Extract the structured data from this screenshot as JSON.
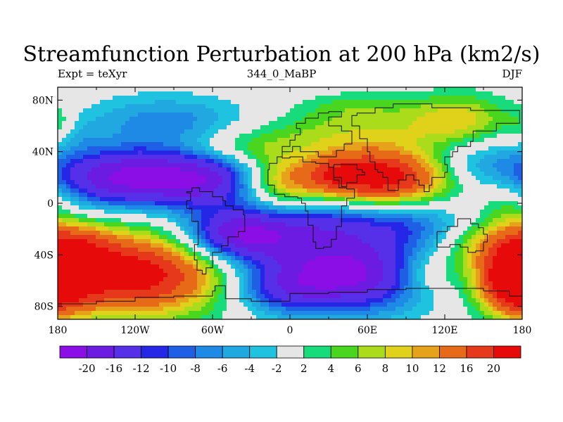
{
  "chart_data": {
    "type": "heatmap",
    "title": "Streamfunction Perturbation at 200 hPa (km2/s)",
    "left_subtitle": "Expt = teXyr",
    "center_subtitle": "344_0_MaBP",
    "right_subtitle": "DJF",
    "x_ticks": [
      {
        "value": -180,
        "label": "180"
      },
      {
        "value": -120,
        "label": "120W"
      },
      {
        "value": -60,
        "label": "60W"
      },
      {
        "value": 0,
        "label": "0"
      },
      {
        "value": 60,
        "label": "60E"
      },
      {
        "value": 120,
        "label": "120E"
      },
      {
        "value": 180,
        "label": "180"
      }
    ],
    "y_ticks": [
      {
        "value": 80,
        "label": "80N"
      },
      {
        "value": 40,
        "label": "40N"
      },
      {
        "value": 0,
        "label": "0"
      },
      {
        "value": -40,
        "label": "40S"
      },
      {
        "value": -80,
        "label": "80S"
      }
    ],
    "xlim": [
      -180,
      180
    ],
    "ylim": [
      -90,
      90
    ],
    "colorbar": {
      "levels": [
        "-20",
        "-16",
        "-12",
        "-10",
        "-8",
        "-6",
        "-4",
        "-2",
        "2",
        "4",
        "6",
        "8",
        "10",
        "12",
        "16",
        "20"
      ],
      "colors": [
        "#8a0ee5",
        "#6c1be2",
        "#5530e8",
        "#2626e6",
        "#1f5fe6",
        "#1f8ae6",
        "#22a8e0",
        "#1fc3e0",
        "#e6e6e6",
        "#18dc7c",
        "#4ad61e",
        "#aadc1c",
        "#e0d21a",
        "#e6a21a",
        "#e66a18",
        "#e6381a",
        "#e60a0a"
      ]
    },
    "features": [
      {
        "lon": -120,
        "lat": 20,
        "value": -22,
        "rx": 45,
        "ry": 16
      },
      {
        "lon": -60,
        "lat": 18,
        "value": -10,
        "rx": 25,
        "ry": 16
      },
      {
        "lon": -95,
        "lat": 64,
        "value": -7,
        "rx": 45,
        "ry": 14
      },
      {
        "lon": -165,
        "lat": 55,
        "value": -3,
        "rx": 12,
        "ry": 10
      },
      {
        "lon": 40,
        "lat": -55,
        "value": -22,
        "rx": 50,
        "ry": 20
      },
      {
        "lon": -40,
        "lat": -25,
        "value": -20,
        "rx": 30,
        "ry": 14
      },
      {
        "lon": 25,
        "lat": -15,
        "value": -10,
        "rx": 35,
        "ry": 16
      },
      {
        "lon": 95,
        "lat": -15,
        "value": -8,
        "rx": 35,
        "ry": 14
      },
      {
        "lon": 140,
        "lat": 30,
        "value": -6,
        "rx": 30,
        "ry": 14
      },
      {
        "lon": -10,
        "lat": -68,
        "value": -6,
        "rx": 25,
        "ry": 12
      },
      {
        "lon": 70,
        "lat": 20,
        "value": 24,
        "rx": 40,
        "ry": 16
      },
      {
        "lon": 35,
        "lat": 22,
        "value": 6,
        "rx": 14,
        "ry": 10
      },
      {
        "lon": -5,
        "lat": 15,
        "value": 9,
        "rx": 20,
        "ry": 14
      },
      {
        "lon": -125,
        "lat": -55,
        "value": 24,
        "rx": 55,
        "ry": 22
      },
      {
        "lon": -165,
        "lat": -30,
        "value": 8,
        "rx": 20,
        "ry": 12
      },
      {
        "lon": 175,
        "lat": -60,
        "value": 22,
        "rx": 18,
        "ry": 18
      },
      {
        "lon": 150,
        "lat": -30,
        "value": 7,
        "rx": 25,
        "ry": 14
      },
      {
        "lon": 105,
        "lat": -55,
        "value": 6,
        "rx": 20,
        "ry": 12
      },
      {
        "lon": 40,
        "lat": 55,
        "value": 6,
        "rx": 50,
        "ry": 12
      },
      {
        "lon": 130,
        "lat": 65,
        "value": 9,
        "rx": 30,
        "ry": 14
      },
      {
        "lon": 50,
        "lat": 75,
        "value": 4,
        "rx": 30,
        "ry": 8
      },
      {
        "lon": -40,
        "lat": 42,
        "value": 6,
        "rx": 30,
        "ry": 10
      },
      {
        "lon": 170,
        "lat": 0,
        "value": 5,
        "rx": 15,
        "ry": 15
      },
      {
        "lon": -178,
        "lat": 60,
        "value": 4,
        "rx": 10,
        "ry": 10
      }
    ]
  }
}
